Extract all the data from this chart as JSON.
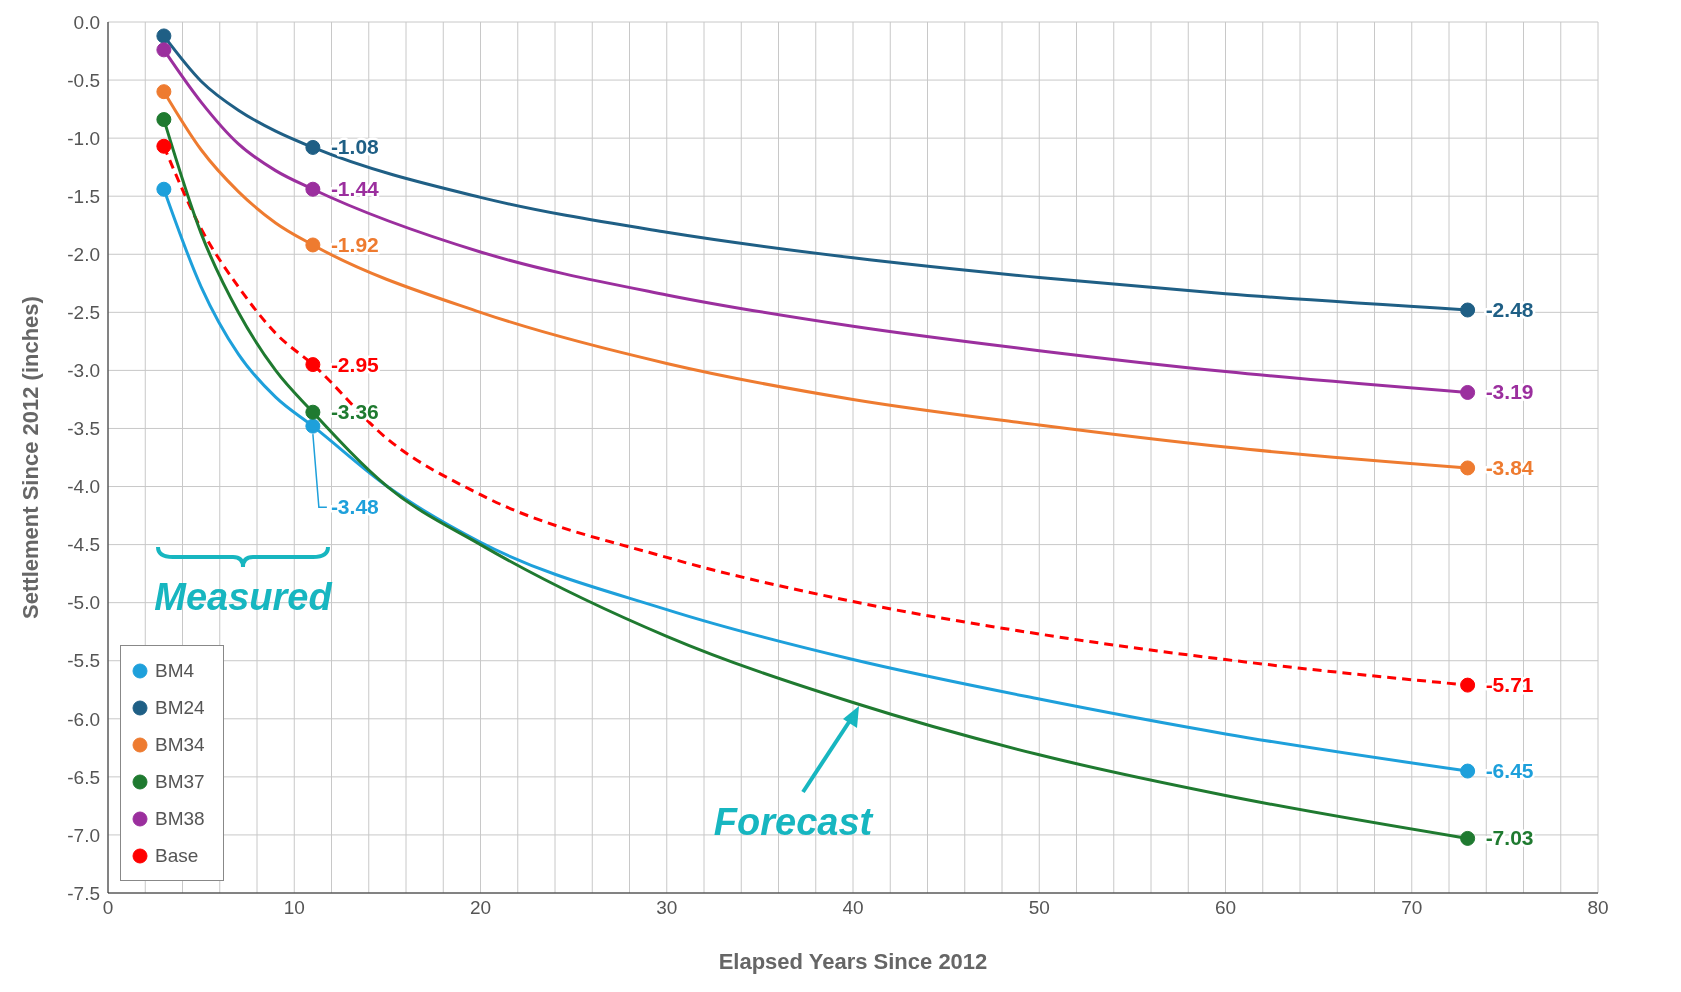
{
  "chart_data": {
    "type": "line",
    "xlabel": "Elapsed Years Since 2012",
    "ylabel": "Settlement Since 2012 (inches)",
    "xlim": [
      0,
      80
    ],
    "ylim": [
      -7.5,
      0
    ],
    "xticks": [
      0,
      {
        "value": 2,
        "label": null
      },
      {
        "value": 4,
        "label": null
      },
      {
        "value": 6,
        "label": null
      },
      {
        "value": 8,
        "label": null
      },
      10,
      {
        "value": 12,
        "label": null
      },
      {
        "value": 14,
        "label": null
      },
      {
        "value": 16,
        "label": null
      },
      {
        "value": 18,
        "label": null
      },
      20,
      {
        "value": 22,
        "label": null
      },
      {
        "value": 24,
        "label": null
      },
      {
        "value": 26,
        "label": null
      },
      {
        "value": 28,
        "label": null
      },
      30,
      {
        "value": 32,
        "label": null
      },
      {
        "value": 34,
        "label": null
      },
      {
        "value": 36,
        "label": null
      },
      {
        "value": 38,
        "label": null
      },
      40,
      {
        "value": 42,
        "label": null
      },
      {
        "value": 44,
        "label": null
      },
      {
        "value": 46,
        "label": null
      },
      {
        "value": 48,
        "label": null
      },
      50,
      {
        "value": 52,
        "label": null
      },
      {
        "value": 54,
        "label": null
      },
      {
        "value": 56,
        "label": null
      },
      {
        "value": 58,
        "label": null
      },
      60,
      {
        "value": 62,
        "label": null
      },
      {
        "value": 64,
        "label": null
      },
      {
        "value": 66,
        "label": null
      },
      {
        "value": 68,
        "label": null
      },
      70,
      {
        "value": 72,
        "label": null
      },
      {
        "value": 74,
        "label": null
      },
      {
        "value": 76,
        "label": null
      },
      {
        "value": 78,
        "label": null
      },
      80
    ],
    "yticks": [
      {
        "value": 0,
        "label": "0.0"
      },
      {
        "value": -0.5,
        "label": "-0.5"
      },
      {
        "value": -1,
        "label": "-1.0"
      },
      {
        "value": -1.5,
        "label": "-1.5"
      },
      {
        "value": -2,
        "label": "-2.0"
      },
      {
        "value": -2.5,
        "label": "-2.5"
      },
      {
        "value": -3,
        "label": "-3.0"
      },
      {
        "value": -3.5,
        "label": "-3.5"
      },
      {
        "value": -4,
        "label": "-4.0"
      },
      {
        "value": -4.5,
        "label": "-4.5"
      },
      {
        "value": -5,
        "label": "-5.0"
      },
      {
        "value": -5.5,
        "label": "-5.5"
      },
      {
        "value": -6,
        "label": "-6.0"
      },
      {
        "value": -6.5,
        "label": "-6.5"
      },
      {
        "value": -7,
        "label": "-7.0"
      },
      {
        "value": -7.5,
        "label": "-7.5"
      }
    ],
    "grid": true,
    "legend": "bottom left",
    "annotations": [
      "Measured",
      "Forecast"
    ],
    "series": [
      {
        "color": "#1f5f85",
        "marker": "none",
        "line_style": "solid",
        "x": [
          3,
          5,
          7,
          9,
          11,
          20,
          30,
          40,
          50,
          60,
          73
        ],
        "values": [
          -0.12,
          -0.51,
          -0.76,
          -0.94,
          -1.08,
          -1.51,
          -1.81,
          -2.03,
          -2.2,
          -2.34,
          -2.48
        ]
      },
      {
        "color": "#9b2f9e",
        "marker": "none",
        "line_style": "solid",
        "x": [
          3,
          5,
          7,
          9,
          11,
          20,
          30,
          40,
          50,
          60,
          73
        ],
        "values": [
          -0.24,
          -0.69,
          -1.05,
          -1.28,
          -1.44,
          -1.98,
          -2.35,
          -2.62,
          -2.83,
          -3.01,
          -3.19
        ]
      },
      {
        "color": "#ee7b30",
        "marker": "none",
        "line_style": "solid",
        "x": [
          3,
          5,
          7,
          9,
          11,
          20,
          30,
          40,
          50,
          60,
          73
        ],
        "values": [
          -0.6,
          -1.1,
          -1.46,
          -1.73,
          -1.92,
          -2.5,
          -2.94,
          -3.25,
          -3.47,
          -3.66,
          -3.84
        ]
      },
      {
        "color": "#ff0000",
        "marker": "none",
        "line_style": "dashed",
        "x": [
          3,
          5,
          7,
          9,
          11,
          15,
          20,
          30,
          40,
          50,
          60,
          73
        ],
        "values": [
          -1.07,
          -1.78,
          -2.28,
          -2.68,
          -2.95,
          -3.59,
          -4.07,
          -4.61,
          -4.99,
          -5.27,
          -5.49,
          -5.71
        ]
      },
      {
        "color": "#1ea0db",
        "marker": "none",
        "line_style": "solid",
        "x": [
          3,
          5,
          7,
          9,
          11,
          15,
          20,
          30,
          40,
          50,
          60,
          73
        ],
        "values": [
          -1.44,
          -2.28,
          -2.86,
          -3.23,
          -3.48,
          -4.0,
          -4.48,
          -5.06,
          -5.49,
          -5.83,
          -6.13,
          -6.45
        ]
      },
      {
        "color": "#1f7a30",
        "marker": "none",
        "line_style": "solid",
        "x": [
          3,
          5,
          7,
          9,
          11,
          15,
          20,
          30,
          40,
          50,
          60,
          73
        ],
        "values": [
          -0.84,
          -1.82,
          -2.5,
          -3.0,
          -3.36,
          -4.0,
          -4.5,
          -5.29,
          -5.86,
          -6.31,
          -6.66,
          -7.03
        ]
      },
      {
        "type": "scatter",
        "name": "BM4",
        "color": "#1ea0db",
        "marker": "circle",
        "x": [
          3,
          11,
          73
        ],
        "values": [
          -1.44,
          -3.48,
          -6.45
        ],
        "value_labels": [
          null,
          "-3.48",
          "-6.45"
        ]
      },
      {
        "type": "scatter",
        "name": "BM24",
        "color": "#1f5f85",
        "marker": "circle",
        "x": [
          3,
          11,
          73
        ],
        "values": [
          -0.12,
          -1.08,
          -2.48
        ],
        "value_labels": [
          null,
          "-1.08",
          "-2.48"
        ]
      },
      {
        "type": "scatter",
        "name": "BM34",
        "color": "#ee7b30",
        "marker": "circle",
        "x": [
          3,
          11,
          73
        ],
        "values": [
          -0.6,
          -1.92,
          -3.84
        ],
        "value_labels": [
          null,
          "-1.92",
          "-3.84"
        ]
      },
      {
        "type": "scatter",
        "name": "BM37",
        "color": "#1f7a30",
        "marker": "circle",
        "x": [
          3,
          11,
          73
        ],
        "values": [
          -0.84,
          -3.36,
          -7.03
        ],
        "value_labels": [
          null,
          "-3.36",
          "-7.03"
        ]
      },
      {
        "type": "scatter",
        "name": "BM38",
        "color": "#9b2f9e",
        "marker": "circle",
        "x": [
          3,
          11,
          73
        ],
        "values": [
          -0.24,
          -1.44,
          -3.19
        ],
        "value_labels": [
          null,
          "-1.44",
          "-3.19"
        ]
      },
      {
        "type": "scatter",
        "name": "Base",
        "color": "#ff0000",
        "marker": "circle",
        "x": [
          3,
          11,
          73
        ],
        "values": [
          -1.07,
          -2.95,
          -5.71
        ],
        "value_labels": [
          null,
          "-2.95",
          "-5.71"
        ]
      }
    ]
  }
}
